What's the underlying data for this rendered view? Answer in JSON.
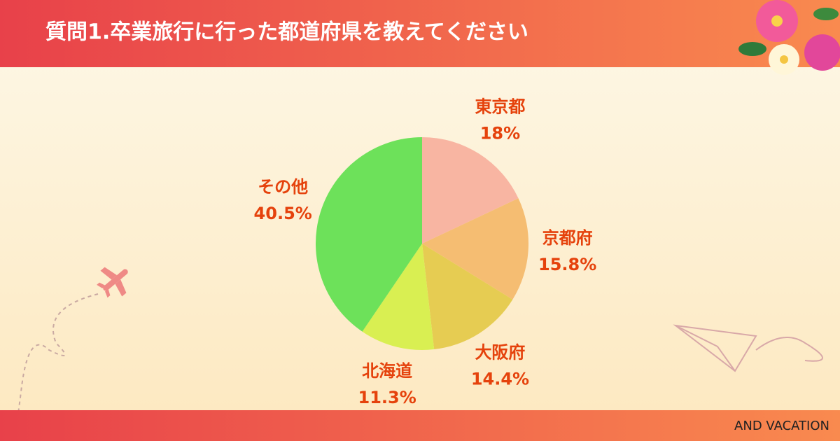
{
  "chart_data": {
    "type": "pie",
    "title": "質問1.卒業旅行に行った都道府県を教えてください",
    "categories": [
      "東京都",
      "京都府",
      "大阪府",
      "北海道",
      "その他"
    ],
    "values": [
      18,
      15.8,
      14.4,
      11.3,
      40.5
    ],
    "value_labels": [
      "18%",
      "15.8%",
      "14.4%",
      "11.3%",
      "40.5%"
    ],
    "colors": [
      "#f8b5a2",
      "#f5bd72",
      "#e6cc52",
      "#d9ef52",
      "#6de15a"
    ]
  },
  "footer": "AND VACATION"
}
